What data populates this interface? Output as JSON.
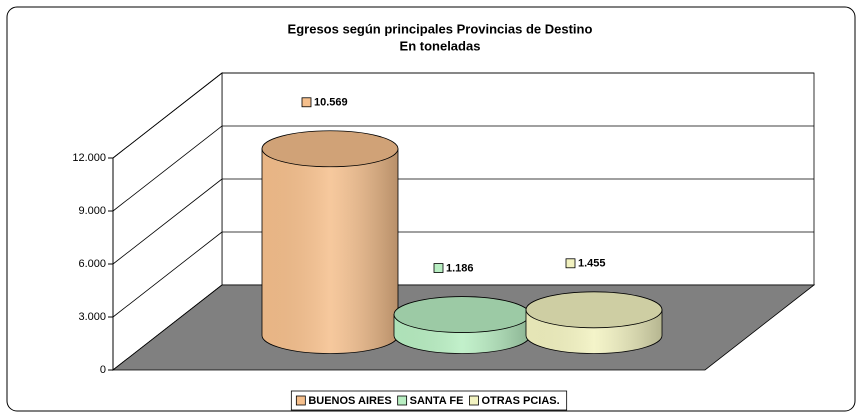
{
  "chart_data": {
    "type": "bar",
    "title": "Egresos según principales Provincias de Destino",
    "subtitle": "En toneladas",
    "categories": [
      null
    ],
    "series": [
      {
        "name": "BUENOS AIRES",
        "color": "#f5bf8c",
        "values": [
          10569
        ],
        "value_labels": [
          "10.569"
        ]
      },
      {
        "name": "SANTA FE",
        "color": "#b8eec2",
        "values": [
          1186
        ],
        "value_labels": [
          "1.186"
        ]
      },
      {
        "name": "OTRAS PCIAS.",
        "color": "#f2f2c0",
        "values": [
          1455
        ],
        "value_labels": [
          "1.455"
        ]
      }
    ],
    "ylim": [
      0,
      12000
    ],
    "yticks": [
      0,
      {
        "value": 3000,
        "label": "3.000"
      },
      {
        "value": 6000,
        "label": "6.000"
      },
      {
        "value": 9000,
        "label": "9.000"
      },
      {
        "value": 12000,
        "label": "12.000"
      }
    ],
    "grid": true,
    "legend": "bottom"
  }
}
